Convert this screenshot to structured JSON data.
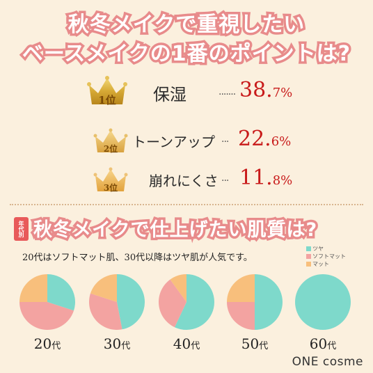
{
  "header": {
    "title_line1": "秋冬メイクで重視したい",
    "title_line2": "ベースメイクの1番のポイントは?"
  },
  "ranking": [
    {
      "rank_label": "1位",
      "label": "保湿",
      "percent_main": "38.",
      "percent_frac": "7%",
      "value": 38.7
    },
    {
      "rank_label": "2位",
      "label": "トーンアップ",
      "percent_main": "22.",
      "percent_frac": "6%",
      "value": 22.6
    },
    {
      "rank_label": "3位",
      "label": "崩れにくさ",
      "percent_main": "11.",
      "percent_frac": "8%",
      "value": 11.8
    }
  ],
  "section2": {
    "badge": "年代別",
    "title": "秋冬メイクで仕上げたい肌質は?",
    "subtitle": "20代はソフトマット肌、30代以降はツヤ肌が人気です。"
  },
  "colors": {
    "tsuya": "#7ed9cb",
    "soft_matte": "#f3a3a1",
    "matte": "#f8bf7c",
    "title_stroke": "#e88b8b",
    "percent": "#c81a1a",
    "background": "#fbf0de"
  },
  "chart_data": [
    {
      "type": "bar",
      "title": "秋冬メイクで重視したいベースメイクの1番のポイントは?",
      "categories": [
        "保湿",
        "トーンアップ",
        "崩れにくさ"
      ],
      "values": [
        38.7,
        22.6,
        11.8
      ],
      "unit": "%"
    },
    {
      "type": "pie",
      "title": "秋冬メイクで仕上げたい肌質は?",
      "legend": [
        "ツヤ",
        "ソフトマット",
        "マット"
      ],
      "legend_placement": "top-right",
      "groups": [
        {
          "label_num": "20",
          "label_unit": "代",
          "values": [
            30,
            45,
            25
          ]
        },
        {
          "label_num": "30",
          "label_unit": "代",
          "values": [
            47,
            33,
            20
          ]
        },
        {
          "label_num": "40",
          "label_unit": "代",
          "values": [
            57,
            33,
            10
          ]
        },
        {
          "label_num": "50",
          "label_unit": "代",
          "values": [
            50,
            25,
            25
          ]
        },
        {
          "label_num": "60",
          "label_unit": "代",
          "values": [
            100,
            0,
            0
          ]
        }
      ]
    }
  ],
  "footer": {
    "logo": "ONE cosme"
  }
}
